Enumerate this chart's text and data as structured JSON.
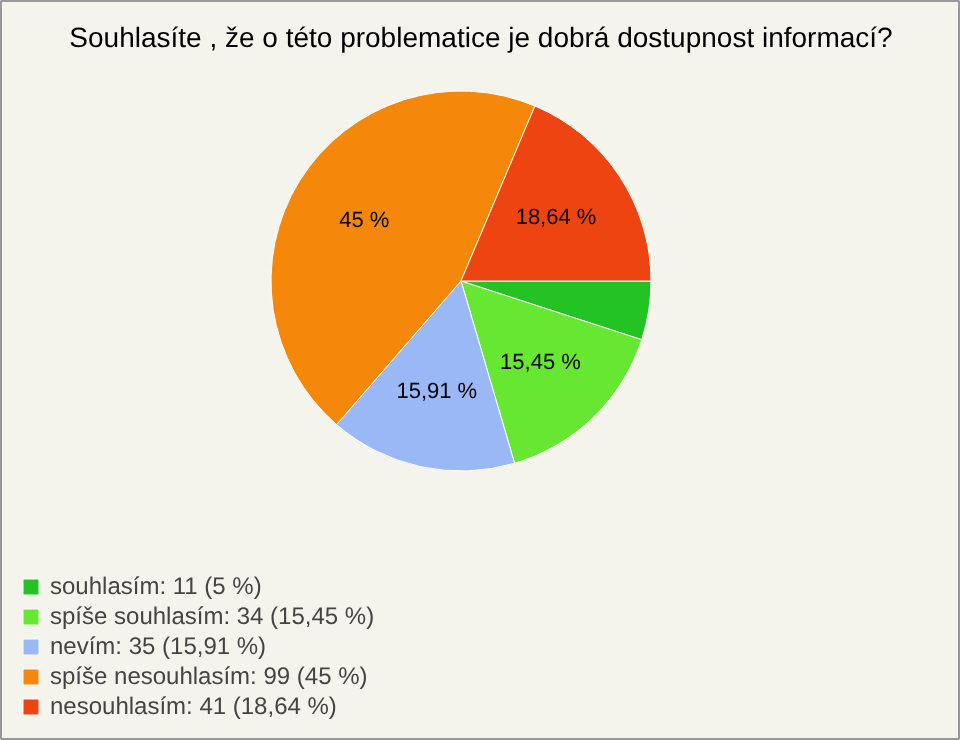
{
  "chart_data": {
    "type": "pie",
    "title": "Souhlasíte , že o této problematice je dobrá dostupnost informací?",
    "categories": [
      "souhlasím: 11 (5 %)",
      "spíše souhlasím: 34 (15,45 %)",
      "nevím: 35 (15,91 %)",
      "spíše nesouhlasím: 99 (45 %)",
      "nesouhlasím: 41 (18,64 %)"
    ],
    "values": [
      5,
      15.45,
      15.91,
      45,
      18.64
    ],
    "colors": [
      "#22c322",
      "#66e833",
      "#9ab8f5",
      "#f5870a",
      "#ee4411"
    ],
    "value_labels": [
      null,
      "15,45 %",
      "15,91 %",
      "45 %",
      "18,64 %"
    ],
    "legend": "bottom left"
  }
}
